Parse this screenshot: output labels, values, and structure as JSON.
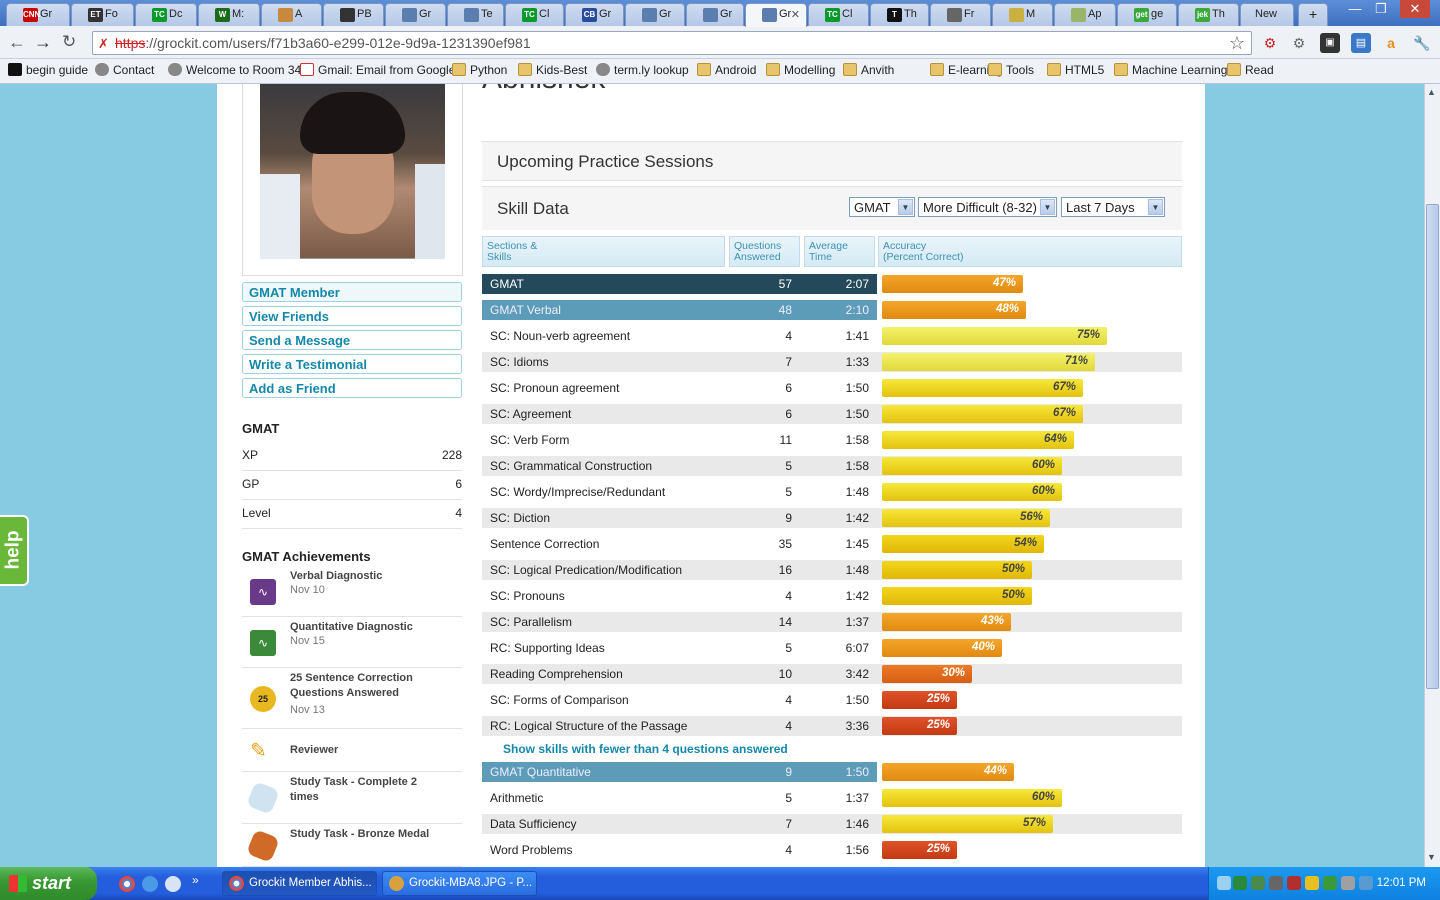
{
  "browser": {
    "tabs": [
      {
        "label": "Gr",
        "favicon": "CNN",
        "color": "#cc0000"
      },
      {
        "label": "Fo",
        "favicon": "ET",
        "color": "#333333"
      },
      {
        "label": "Dc",
        "favicon": "TC",
        "color": "#0a9a2b"
      },
      {
        "label": "M:",
        "favicon": "W",
        "color": "#1a6b1a"
      },
      {
        "label": "A",
        "favicon": "",
        "color": "#c88840"
      },
      {
        "label": "PB",
        "favicon": "",
        "color": "#333333"
      },
      {
        "label": "Gr",
        "favicon": "",
        "color": "#5a7fae"
      },
      {
        "label": "Te",
        "favicon": "",
        "color": "#5a7fae"
      },
      {
        "label": "Cl",
        "favicon": "TC",
        "color": "#0a9a2b"
      },
      {
        "label": "Gr",
        "favicon": "CB",
        "color": "#2a4c9a"
      },
      {
        "label": "Gr",
        "favicon": "",
        "color": "#5a7fae"
      },
      {
        "label": "Gr",
        "favicon": "",
        "color": "#5a7fae"
      },
      {
        "label": "Gr",
        "favicon": "",
        "color": "#5a7fae",
        "active": true
      },
      {
        "label": "Cl",
        "favicon": "TC",
        "color": "#0a9a2b"
      },
      {
        "label": "Th",
        "favicon": "T",
        "color": "#111111"
      },
      {
        "label": "Fr",
        "favicon": "",
        "color": "#666666"
      },
      {
        "label": "M",
        "favicon": "",
        "color": "#c9b040"
      },
      {
        "label": "Ap",
        "favicon": "",
        "color": "#9ab56a"
      },
      {
        "label": "ge",
        "favicon": "get",
        "color": "#3aa83a"
      },
      {
        "label": "Th",
        "favicon": "jek",
        "color": "#3aa83a"
      },
      {
        "label": "New",
        "favicon": "",
        "color": ""
      }
    ],
    "url_protocol": "https",
    "url_rest": "://grockit.com/users/f71b3a60-e299-012e-9d9a-1231390ef981",
    "bookmarks": [
      {
        "label": "begin guide",
        "icon": "b-icon"
      },
      {
        "label": "Contact",
        "icon": "globe-icon"
      },
      {
        "label": "Welcome to Room 34",
        "icon": "globe-icon"
      },
      {
        "label": "Gmail: Email from Google",
        "icon": "gmail-icon"
      },
      {
        "label": "Python",
        "icon": "folder-icon"
      },
      {
        "label": "Kids-Best",
        "icon": "folder-icon"
      },
      {
        "label": "term.ly lookup",
        "icon": "globe-icon"
      },
      {
        "label": "Android",
        "icon": "folder-icon"
      },
      {
        "label": "Modelling",
        "icon": "folder-icon"
      },
      {
        "label": "Anvith",
        "icon": "folder-icon"
      },
      {
        "label": "E-learning",
        "icon": "folder-icon"
      },
      {
        "label": "Tools",
        "icon": "folder-icon"
      },
      {
        "label": "HTML5",
        "icon": "folder-icon"
      },
      {
        "label": "Machine Learning",
        "icon": "folder-icon"
      },
      {
        "label": "Read",
        "icon": "folder-icon"
      }
    ]
  },
  "profile": {
    "name_partial": "Abhishek",
    "links": [
      "GMAT Member",
      "View Friends",
      "Send a Message",
      "Write a Testimonial",
      "Add as Friend"
    ],
    "gmat_title": "GMAT",
    "stats": [
      {
        "label": "XP",
        "value": "228"
      },
      {
        "label": "GP",
        "value": "6"
      },
      {
        "label": "Level",
        "value": "4"
      }
    ],
    "achievements_title": "GMAT Achievements",
    "achievements": [
      {
        "name": "Verbal Diagnostic",
        "date": "Nov 10",
        "icon": "pulse-icon",
        "color": "#6a3a8a"
      },
      {
        "name": "Quantitative Diagnostic",
        "date": "Nov 15",
        "icon": "pulse-icon",
        "color": "#3a8a3a"
      },
      {
        "name": "25 Sentence Correction Questions Answered",
        "date": "Nov 13",
        "icon": "badge-25-icon",
        "color": "#e8b820"
      },
      {
        "name": "Reviewer",
        "date": "",
        "icon": "highlighter-icon",
        "color": "#e8a020"
      },
      {
        "name": "Study Task - Complete 2 times",
        "date": "",
        "icon": "octagon-icon",
        "color": "#cfe4f0"
      },
      {
        "name": "Study Task - Bronze Medal",
        "date": "",
        "icon": "octagon-icon",
        "color": "#d06a28"
      }
    ]
  },
  "main": {
    "upcoming_title": "Upcoming Practice Sessions",
    "skill_title": "Skill Data",
    "filters": {
      "exam": "GMAT",
      "difficulty": "More Difficult (8-32)",
      "period": "Last 7 Days"
    },
    "columns": [
      {
        "l1": "Sections &",
        "l2": "Skills"
      },
      {
        "l1": "Questions",
        "l2": "Answered"
      },
      {
        "l1": "Average",
        "l2": "Time"
      },
      {
        "l1": "Accuracy",
        "l2": "(Percent Correct)"
      }
    ],
    "rows": [
      {
        "name": "GMAT",
        "q": "57",
        "t": "2:07",
        "acc": 47,
        "kind": "dark"
      },
      {
        "name": "GMAT Verbal",
        "q": "48",
        "t": "2:10",
        "acc": 48,
        "kind": "mid"
      },
      {
        "name": "SC: Noun-verb agreement",
        "q": "4",
        "t": "1:41",
        "acc": 75
      },
      {
        "name": "SC: Idioms",
        "q": "7",
        "t": "1:33",
        "acc": 71
      },
      {
        "name": "SC: Pronoun agreement",
        "q": "6",
        "t": "1:50",
        "acc": 67
      },
      {
        "name": "SC: Agreement",
        "q": "6",
        "t": "1:50",
        "acc": 67
      },
      {
        "name": "SC: Verb Form",
        "q": "11",
        "t": "1:58",
        "acc": 64
      },
      {
        "name": "SC: Grammatical Construction",
        "q": "5",
        "t": "1:58",
        "acc": 60
      },
      {
        "name": "SC: Wordy/Imprecise/Redundant",
        "q": "5",
        "t": "1:48",
        "acc": 60
      },
      {
        "name": "SC: Diction",
        "q": "9",
        "t": "1:42",
        "acc": 56
      },
      {
        "name": "Sentence Correction",
        "q": "35",
        "t": "1:45",
        "acc": 54
      },
      {
        "name": "SC: Logical Predication/Modification",
        "q": "16",
        "t": "1:48",
        "acc": 50
      },
      {
        "name": "SC: Pronouns",
        "q": "4",
        "t": "1:42",
        "acc": 50
      },
      {
        "name": "SC: Parallelism",
        "q": "14",
        "t": "1:37",
        "acc": 43
      },
      {
        "name": "RC: Supporting Ideas",
        "q": "5",
        "t": "6:07",
        "acc": 40
      },
      {
        "name": "Reading Comprehension",
        "q": "10",
        "t": "3:42",
        "acc": 30
      },
      {
        "name": "SC: Forms of Comparison",
        "q": "4",
        "t": "1:50",
        "acc": 25
      },
      {
        "name": "RC: Logical Structure of the Passage",
        "q": "4",
        "t": "3:36",
        "acc": 25
      }
    ],
    "show_more": "Show skills with fewer than 4 questions answered",
    "rows2": [
      {
        "name": "GMAT Quantitative",
        "q": "9",
        "t": "1:50",
        "acc": 44,
        "kind": "mid"
      },
      {
        "name": "Arithmetic",
        "q": "5",
        "t": "1:37",
        "acc": 60
      },
      {
        "name": "Data Sufficiency",
        "q": "7",
        "t": "1:46",
        "acc": 57
      },
      {
        "name": "Word Problems",
        "q": "4",
        "t": "1:56",
        "acc": 25
      }
    ]
  },
  "help_label": "help",
  "taskbar": {
    "start": "start",
    "tasks": [
      "Grockit Member Abhis...",
      "Grockit-MBA8.JPG - P..."
    ],
    "clock": "12:01 PM"
  }
}
